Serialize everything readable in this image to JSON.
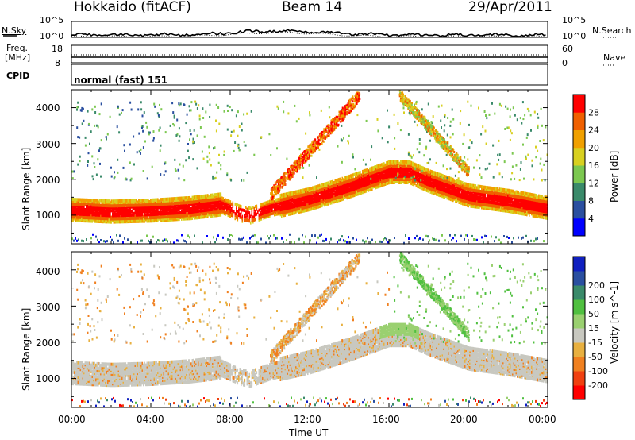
{
  "header": {
    "radar": "Hokkaido (fitACF)",
    "beam": "Beam 14",
    "date": "29/Apr/2011"
  },
  "noise_panel": {
    "left_label": "N.Sky",
    "right_label": "N.Search",
    "left_ticks": [
      "10^5",
      "10^0"
    ],
    "right_ticks": [
      "10^5",
      "10^0"
    ]
  },
  "freq_panel": {
    "left_label_1": "Freq.",
    "left_label_2": "[MHz]",
    "right_label": "Nave",
    "left_ticks": [
      "18",
      "8"
    ],
    "right_ticks": [
      "60",
      "0"
    ]
  },
  "cpid_panel": {
    "label": "CPID",
    "mode_text": "normal (fast) 151"
  },
  "x_axis": {
    "label": "Time UT",
    "ticks": [
      "00:00",
      "04:00",
      "08:00",
      "12:00",
      "16:00",
      "20:00",
      "00:00"
    ]
  },
  "colors": {
    "power_scale": [
      "#0000ff",
      "#2a4fa0",
      "#3a8a6a",
      "#7cc850",
      "#d8d020",
      "#f0a000",
      "#f06000",
      "#ff0000"
    ],
    "velocity_scale": [
      "#ff0000",
      "#f04010",
      "#f08020",
      "#e8b040",
      "#c8c8c0",
      "#9ad070",
      "#50c040",
      "#3a8a6a",
      "#2a4fa0",
      "#1020c0"
    ]
  },
  "chart_data": [
    {
      "type": "heatmap",
      "title": "Power",
      "ylabel": "Slant Range [km]",
      "xlabel": "",
      "y_ticks": [
        "1000",
        "2000",
        "3000",
        "4000"
      ],
      "ylim": [
        200,
        4500
      ],
      "xlim": [
        0,
        24
      ],
      "colorbar_label": "Power [dB]",
      "colorbar_ticks": [
        "4",
        "8",
        "12",
        "16",
        "20",
        "24",
        "28"
      ],
      "main_echo_band": {
        "time_h": [
          0,
          2,
          4,
          6,
          7.5,
          8.5,
          9,
          10,
          12,
          14,
          16,
          17,
          18,
          20,
          22,
          24
        ],
        "range_km": [
          1200,
          1150,
          1180,
          1250,
          1350,
          1100,
          1050,
          1250,
          1500,
          1850,
          2250,
          2250,
          2000,
          1600,
          1450,
          1250
        ]
      }
    },
    {
      "type": "heatmap",
      "title": "Velocity",
      "ylabel": "Slant Range [km]",
      "xlabel": "Time UT",
      "y_ticks": [
        "1000",
        "2000",
        "3000",
        "4000"
      ],
      "ylim": [
        200,
        4500
      ],
      "xlim": [
        0,
        24
      ],
      "colorbar_label": "Velocity [m s^-1]",
      "colorbar_ticks": [
        "200",
        "100",
        "50",
        "15",
        "-15",
        "-50",
        "-100",
        "-200"
      ]
    }
  ]
}
